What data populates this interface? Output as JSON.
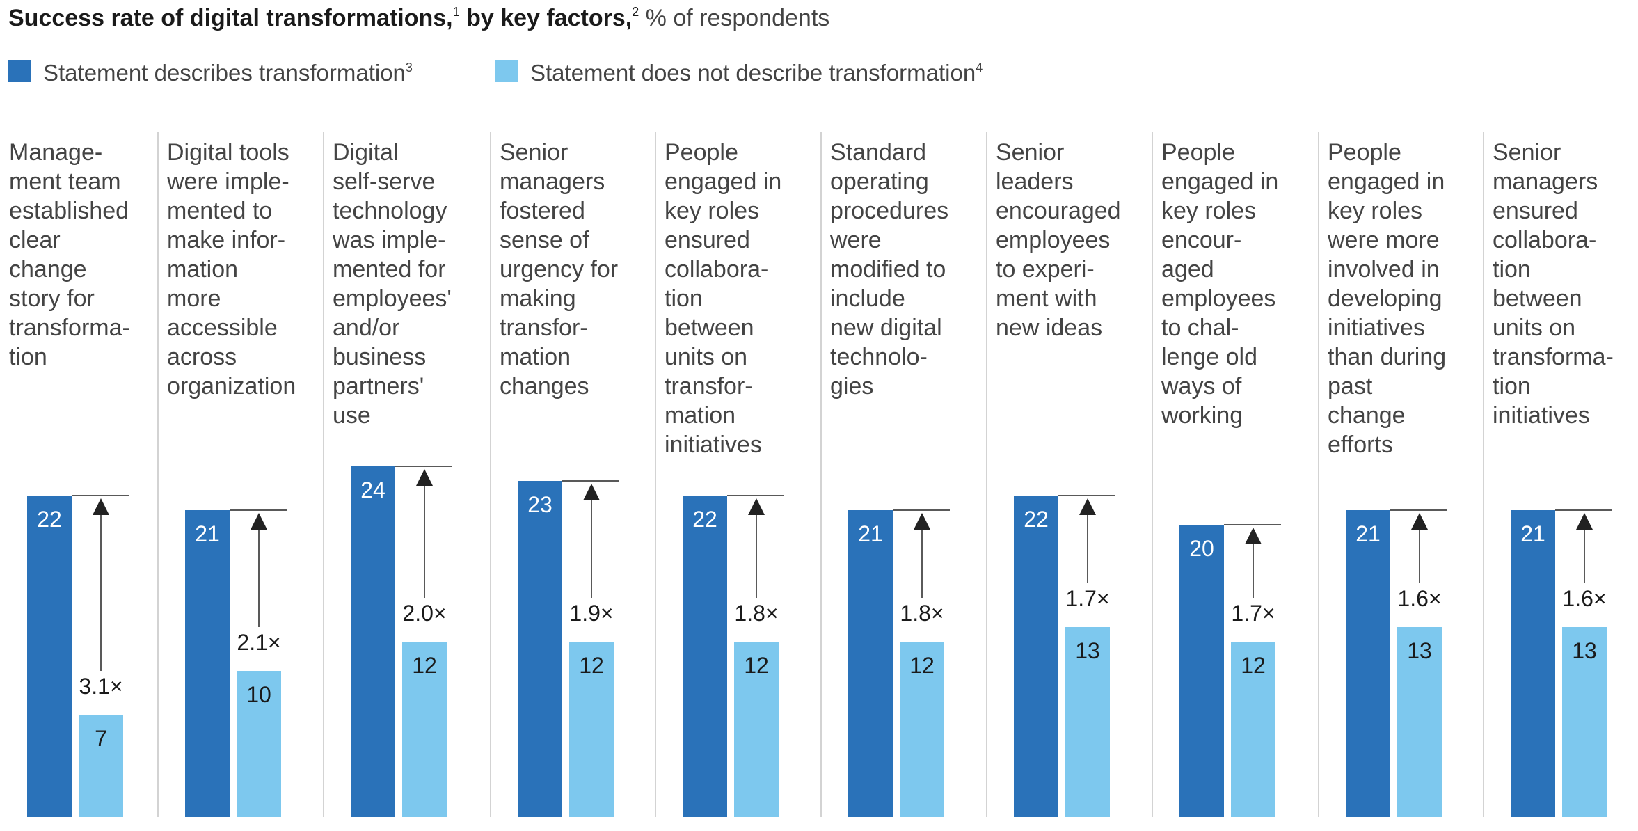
{
  "title": {
    "main": "Success rate of digital transformations,",
    "sup1": "1",
    "main2": " by key factors,",
    "sup2": "2",
    "sub": " % of respondents"
  },
  "colors": {
    "dark": "#2a72b9",
    "light": "#7dc8ee",
    "divider": "#d3d3d3",
    "arrow": "#222222"
  },
  "chart_data": {
    "type": "bar",
    "title": "Success rate of digital transformations, by key factors, % of respondents",
    "ylim": [
      0,
      30
    ],
    "grid": false,
    "legend_position": "top-left",
    "series": [
      {
        "name": "Statement describes transformation",
        "footnote": "3",
        "color": "#2a72b9",
        "values": [
          22,
          21,
          24,
          23,
          22,
          21,
          22,
          20,
          21,
          21
        ]
      },
      {
        "name": "Statement does not describe transformation",
        "footnote": "4",
        "color": "#7dc8ee",
        "values": [
          7,
          10,
          12,
          12,
          12,
          12,
          13,
          12,
          13,
          13
        ]
      }
    ],
    "ratios": [
      "3.1×",
      "2.1×",
      "2.0×",
      "1.9×",
      "1.8×",
      "1.8×",
      "1.7×",
      "1.7×",
      "1.6×",
      "1.6×"
    ],
    "categories": [
      [
        "Manage-",
        "ment team",
        "established",
        "clear",
        "change",
        "story for",
        "transforma-",
        "tion"
      ],
      [
        "Digital tools",
        "were imple-",
        "mented to",
        "make infor-",
        "mation",
        "more",
        "accessible",
        "across",
        "organization"
      ],
      [
        "Digital",
        "self-serve",
        "technology",
        "was imple-",
        "mented for",
        "employees'",
        "and/or",
        "business",
        "partners'",
        "use"
      ],
      [
        "Senior",
        "managers",
        "fostered",
        "sense of",
        "urgency for",
        "making",
        "transfor-",
        "mation",
        "changes"
      ],
      [
        "People",
        "engaged in",
        "key roles",
        "ensured",
        "collabora-",
        "tion",
        "between",
        "units on",
        "transfor-",
        "mation",
        "initiatives"
      ],
      [
        "Standard",
        "operating",
        "procedures",
        "were",
        "modified to",
        "include",
        "new digital",
        "technolo-",
        "gies"
      ],
      [
        "Senior",
        "leaders",
        "encouraged",
        "employees",
        "to experi-",
        "ment with",
        "new ideas"
      ],
      [
        "People",
        "engaged in",
        "key roles",
        "encour-",
        "aged",
        "employees",
        "to chal-",
        "lenge old",
        "ways of",
        "working"
      ],
      [
        "People",
        "engaged in",
        "key roles",
        "were more",
        "involved in",
        "developing",
        "initiatives",
        "than during",
        "past",
        "change",
        "efforts"
      ],
      [
        "Senior",
        "managers",
        "ensured",
        "collabora-",
        "tion",
        "between",
        "units on",
        "transforma-",
        "tion",
        "initiatives"
      ]
    ]
  }
}
